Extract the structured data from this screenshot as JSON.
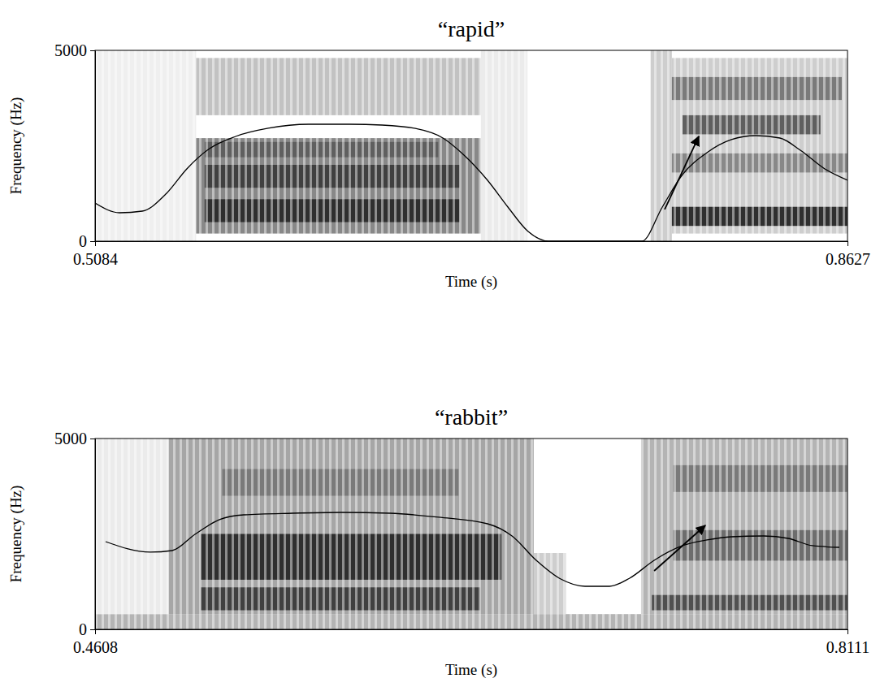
{
  "chart_data": [
    {
      "type": "spectrogram",
      "title": "“rapid”",
      "x_label": "Time (s)",
      "y_label": "Frequency (Hz)",
      "xlim": [
        0.5084,
        0.8627
      ],
      "xticks": [
        0.5084,
        0.8627
      ],
      "ylim": [
        0,
        5000
      ],
      "yticks": [
        0,
        5000
      ],
      "bands": [
        {
          "t0": 0.5084,
          "t1": 0.556,
          "f0": 0,
          "f1": 5000,
          "level": 0.12
        },
        {
          "t0": 0.556,
          "t1": 0.69,
          "f0": 3300,
          "f1": 4800,
          "level": 0.35
        },
        {
          "t0": 0.556,
          "t1": 0.69,
          "f0": 200,
          "f1": 2700,
          "level": 0.55
        },
        {
          "t0": 0.56,
          "t1": 0.68,
          "f0": 500,
          "f1": 1100,
          "level": 0.85
        },
        {
          "t0": 0.56,
          "t1": 0.68,
          "f0": 1400,
          "f1": 2000,
          "level": 0.8
        },
        {
          "t0": 0.56,
          "t1": 0.67,
          "f0": 2200,
          "f1": 2600,
          "level": 0.7
        },
        {
          "t0": 0.69,
          "t1": 0.712,
          "f0": 0,
          "f1": 5000,
          "level": 0.15
        },
        {
          "t0": 0.77,
          "t1": 0.78,
          "f0": 0,
          "f1": 5000,
          "level": 0.3
        },
        {
          "t0": 0.78,
          "t1": 0.8627,
          "f0": 200,
          "f1": 4800,
          "level": 0.3
        },
        {
          "t0": 0.78,
          "t1": 0.8627,
          "f0": 400,
          "f1": 900,
          "level": 0.85
        },
        {
          "t0": 0.78,
          "t1": 0.8627,
          "f0": 1800,
          "f1": 2300,
          "level": 0.55
        },
        {
          "t0": 0.785,
          "t1": 0.85,
          "f0": 2800,
          "f1": 3300,
          "level": 0.7
        },
        {
          "t0": 0.78,
          "t1": 0.86,
          "f0": 3700,
          "f1": 4300,
          "level": 0.6
        }
      ],
      "line": {
        "x": [
          0.5084,
          0.5199,
          0.5306,
          0.5421,
          0.5516,
          0.5623,
          0.5746,
          0.5899,
          0.609,
          0.6282,
          0.6435,
          0.6588,
          0.6722,
          0.6817,
          0.6932,
          0.7028,
          0.7123,
          0.7219,
          0.7659,
          0.7755,
          0.785,
          0.7965,
          0.808,
          0.8195,
          0.8309,
          0.8405,
          0.852,
          0.8627
        ],
        "y": [
          1000,
          745,
          787,
          1255,
          1894,
          2426,
          2745,
          2958,
          3064,
          3064,
          3043,
          2958,
          2702,
          2277,
          1596,
          894,
          255,
          0,
          0,
          894,
          1745,
          2319,
          2660,
          2766,
          2702,
          2383,
          1894,
          1596
        ]
      },
      "arrow": {
        "x": [
          0.7766,
          0.7927
        ],
        "y": [
          830,
          2745
        ]
      }
    },
    {
      "type": "spectrogram",
      "title": "“rabbit”",
      "x_label": "Time (s)",
      "y_label": "Frequency (Hz)",
      "xlim": [
        0.4608,
        0.8111
      ],
      "xticks": [
        0.4608,
        0.8111
      ],
      "ylim": [
        0,
        5000
      ],
      "yticks": [
        0,
        5000
      ],
      "bands": [
        {
          "t0": 0.4608,
          "t1": 0.8111,
          "f0": 0,
          "f1": 400,
          "level": 0.4
        },
        {
          "t0": 0.4608,
          "t1": 0.495,
          "f0": 400,
          "f1": 5000,
          "level": 0.15
        },
        {
          "t0": 0.495,
          "t1": 0.665,
          "f0": 400,
          "f1": 5000,
          "level": 0.45
        },
        {
          "t0": 0.51,
          "t1": 0.65,
          "f0": 1300,
          "f1": 2500,
          "level": 0.85
        },
        {
          "t0": 0.51,
          "t1": 0.64,
          "f0": 500,
          "f1": 1100,
          "level": 0.8
        },
        {
          "t0": 0.52,
          "t1": 0.63,
          "f0": 3500,
          "f1": 4200,
          "level": 0.6
        },
        {
          "t0": 0.665,
          "t1": 0.68,
          "f0": 400,
          "f1": 2000,
          "level": 0.3
        },
        {
          "t0": 0.715,
          "t1": 0.8111,
          "f0": 400,
          "f1": 5000,
          "level": 0.4
        },
        {
          "t0": 0.72,
          "t1": 0.8111,
          "f0": 500,
          "f1": 900,
          "level": 0.75
        },
        {
          "t0": 0.73,
          "t1": 0.8111,
          "f0": 1800,
          "f1": 2600,
          "level": 0.65
        },
        {
          "t0": 0.73,
          "t1": 0.8111,
          "f0": 3600,
          "f1": 4300,
          "level": 0.6
        }
      ],
      "line": {
        "x": [
          0.4657,
          0.4865,
          0.4967,
          0.5073,
          0.5187,
          0.53,
          0.5527,
          0.5754,
          0.5981,
          0.6208,
          0.6435,
          0.6549,
          0.6662,
          0.6776,
          0.6889,
          0.7003,
          0.7097,
          0.7211,
          0.7343,
          0.7457,
          0.757,
          0.7721,
          0.7835,
          0.7948,
          0.8073
        ],
        "y": [
          2298,
          2022,
          2064,
          2490,
          2873,
          3000,
          3043,
          3064,
          3043,
          2937,
          2766,
          2447,
          1809,
          1319,
          1128,
          1128,
          1341,
          1809,
          2192,
          2341,
          2426,
          2447,
          2383,
          2192,
          2149
        ]
      },
      "arrow": {
        "x": [
          0.7211,
          0.7449
        ],
        "y": [
          1532,
          2724
        ]
      }
    }
  ]
}
